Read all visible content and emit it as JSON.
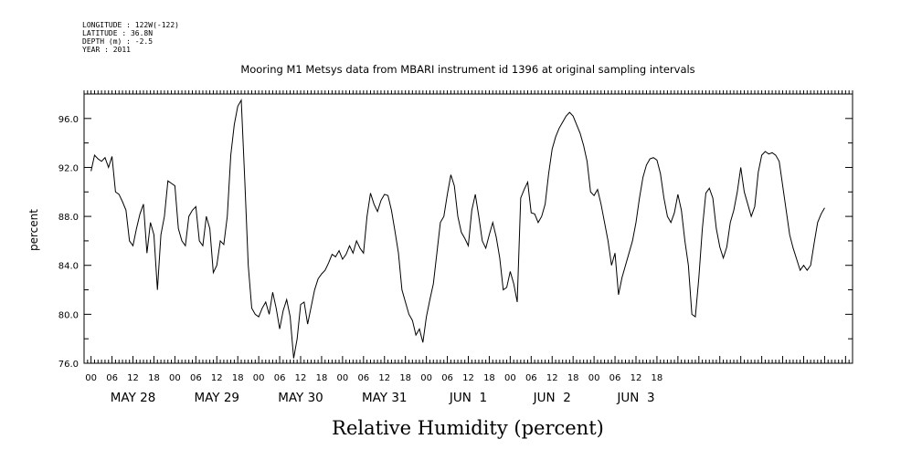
{
  "meta": {
    "longitude": "LONGITUDE : 122W(-122)",
    "latitude": "LATITUDE : 36.8N",
    "depth": "DEPTH (m) : -2.5",
    "year": "YEAR : 2011"
  },
  "chart_data": {
    "type": "line",
    "title": "Mooring M1 Metsys data from MBARI instrument id 1396 at original sampling intervals",
    "footer_title": "Relative Humidity (percent)",
    "ylabel": "percent",
    "xlabel": "",
    "ylim": [
      76.0,
      98.0
    ],
    "y_ticks": [
      "76.0",
      "80.0",
      "84.0",
      "88.0",
      "92.0",
      "96.0"
    ],
    "x_hour_labels": [
      "00",
      "06",
      "12",
      "18",
      "00",
      "06",
      "12",
      "18",
      "00",
      "06",
      "12",
      "18",
      "00",
      "06",
      "12",
      "18",
      "00",
      "06",
      "12",
      "18",
      "00",
      "06",
      "12",
      "18",
      "00",
      "06",
      "12",
      "18"
    ],
    "x_day_labels": [
      "MAY 28",
      "MAY 29",
      "MAY 30",
      "MAY 31",
      "JUN  1",
      "JUN  2",
      "JUN  3"
    ],
    "grid": false,
    "series": [
      {
        "points": [
          [
            0.0,
            91.7
          ],
          [
            1,
            93.0
          ],
          [
            2,
            92.7
          ],
          [
            3,
            92.5
          ],
          [
            4,
            92.8
          ],
          [
            5,
            92.0
          ],
          [
            6,
            92.9
          ],
          [
            7,
            90.0
          ],
          [
            8,
            89.8
          ],
          [
            9,
            89.2
          ],
          [
            10,
            88.5
          ],
          [
            11,
            86.0
          ],
          [
            12,
            85.6
          ],
          [
            13,
            87.0
          ],
          [
            14,
            88.2
          ],
          [
            15,
            89.0
          ],
          [
            16,
            85.0
          ],
          [
            17,
            87.5
          ],
          [
            18,
            86.5
          ],
          [
            19,
            82.0
          ],
          [
            20,
            86.5
          ],
          [
            21,
            88.0
          ],
          [
            22,
            90.9
          ],
          [
            23,
            90.7
          ],
          [
            24,
            90.5
          ],
          [
            25,
            87.0
          ],
          [
            26,
            86.0
          ],
          [
            27,
            85.6
          ],
          [
            28,
            88.0
          ],
          [
            29,
            88.5
          ],
          [
            30,
            88.8
          ],
          [
            31,
            86.0
          ],
          [
            32,
            85.6
          ],
          [
            33,
            88.0
          ],
          [
            34,
            87.0
          ],
          [
            35,
            83.4
          ],
          [
            36,
            84.0
          ],
          [
            37,
            86.0
          ],
          [
            38,
            85.7
          ],
          [
            39,
            88.0
          ],
          [
            40,
            93.0
          ],
          [
            41,
            95.5
          ],
          [
            42,
            97.0
          ],
          [
            43,
            97.5
          ],
          [
            44,
            91.0
          ],
          [
            45,
            84.0
          ],
          [
            46,
            80.5
          ],
          [
            47,
            80.0
          ],
          [
            48,
            79.8
          ],
          [
            49,
            80.5
          ],
          [
            50,
            81.0
          ],
          [
            51,
            80.0
          ],
          [
            52,
            81.8
          ],
          [
            53,
            80.5
          ],
          [
            54,
            78.8
          ],
          [
            55,
            80.3
          ],
          [
            56,
            81.2
          ],
          [
            57,
            79.8
          ],
          [
            58,
            76.4
          ],
          [
            59,
            78.0
          ],
          [
            60,
            80.8
          ],
          [
            61,
            81.0
          ],
          [
            62,
            79.2
          ],
          [
            63,
            80.6
          ],
          [
            64,
            82.0
          ],
          [
            65,
            82.9
          ],
          [
            66,
            83.3
          ],
          [
            67,
            83.6
          ],
          [
            68,
            84.2
          ],
          [
            69,
            84.9
          ],
          [
            70,
            84.7
          ],
          [
            71,
            85.2
          ],
          [
            72,
            84.5
          ],
          [
            73,
            84.9
          ],
          [
            74,
            85.6
          ],
          [
            75,
            85.0
          ],
          [
            76,
            86.0
          ],
          [
            77,
            85.4
          ],
          [
            78,
            85.0
          ],
          [
            79,
            88.0
          ],
          [
            80,
            89.9
          ],
          [
            81,
            89.0
          ],
          [
            82,
            88.4
          ],
          [
            83,
            89.3
          ],
          [
            84,
            89.8
          ],
          [
            85,
            89.7
          ],
          [
            86,
            88.5
          ],
          [
            87,
            86.8
          ],
          [
            88,
            85.0
          ],
          [
            89,
            82.0
          ],
          [
            90,
            81.0
          ],
          [
            91,
            80.0
          ],
          [
            92,
            79.5
          ],
          [
            93,
            78.3
          ],
          [
            94,
            78.8
          ],
          [
            95,
            77.7
          ],
          [
            96,
            79.8
          ],
          [
            97,
            81.2
          ],
          [
            98,
            82.5
          ],
          [
            99,
            85.0
          ],
          [
            100,
            87.5
          ],
          [
            101,
            88.0
          ],
          [
            102,
            89.8
          ],
          [
            103,
            91.4
          ],
          [
            104,
            90.5
          ],
          [
            105,
            88.0
          ],
          [
            106,
            86.7
          ],
          [
            107,
            86.2
          ],
          [
            108,
            85.6
          ],
          [
            109,
            88.5
          ],
          [
            110,
            89.8
          ],
          [
            111,
            88.0
          ],
          [
            112,
            86.0
          ],
          [
            113,
            85.4
          ],
          [
            114,
            86.5
          ],
          [
            115,
            87.5
          ],
          [
            116,
            86.3
          ],
          [
            117,
            84.6
          ],
          [
            118,
            82.0
          ],
          [
            119,
            82.2
          ],
          [
            120,
            83.5
          ],
          [
            121,
            82.5
          ],
          [
            122,
            81.0
          ],
          [
            123,
            89.5
          ],
          [
            124,
            90.2
          ],
          [
            125,
            90.8
          ],
          [
            126,
            88.3
          ],
          [
            127,
            88.2
          ],
          [
            128,
            87.5
          ],
          [
            129,
            88.0
          ],
          [
            130,
            89.0
          ],
          [
            131,
            91.5
          ],
          [
            132,
            93.5
          ],
          [
            133,
            94.5
          ],
          [
            134,
            95.2
          ],
          [
            135,
            95.7
          ],
          [
            136,
            96.2
          ],
          [
            137,
            96.5
          ],
          [
            138,
            96.2
          ],
          [
            139,
            95.5
          ],
          [
            140,
            94.8
          ],
          [
            141,
            93.8
          ],
          [
            142,
            92.5
          ],
          [
            143,
            90.0
          ],
          [
            144,
            89.7
          ],
          [
            145,
            90.2
          ],
          [
            146,
            89.0
          ],
          [
            147,
            87.5
          ],
          [
            148,
            86.0
          ],
          [
            149,
            84.0
          ],
          [
            150,
            85.0
          ],
          [
            151,
            81.6
          ],
          [
            152,
            83.0
          ],
          [
            153,
            84.0
          ],
          [
            154,
            85.0
          ],
          [
            155,
            86.0
          ],
          [
            156,
            87.5
          ],
          [
            157,
            89.5
          ],
          [
            158,
            91.2
          ],
          [
            159,
            92.2
          ],
          [
            160,
            92.7
          ],
          [
            161,
            92.8
          ],
          [
            162,
            92.6
          ],
          [
            163,
            91.5
          ],
          [
            164,
            89.5
          ],
          [
            165,
            88.0
          ],
          [
            166,
            87.5
          ],
          [
            167,
            88.3
          ],
          [
            168,
            89.8
          ],
          [
            169,
            88.5
          ],
          [
            170,
            86.0
          ],
          [
            171,
            84.0
          ],
          [
            172,
            80.0
          ],
          [
            173,
            79.8
          ],
          [
            174,
            83.0
          ],
          [
            175,
            87.0
          ],
          [
            176,
            89.9
          ],
          [
            177,
            90.3
          ],
          [
            178,
            89.5
          ],
          [
            179,
            87.0
          ],
          [
            180,
            85.5
          ],
          [
            181,
            84.6
          ],
          [
            182,
            85.5
          ],
          [
            183,
            87.5
          ],
          [
            184,
            88.5
          ],
          [
            185,
            90.0
          ],
          [
            186,
            92.0
          ],
          [
            187,
            90.0
          ],
          [
            188,
            89.0
          ],
          [
            189,
            88.0
          ],
          [
            190,
            88.8
          ],
          [
            191,
            91.6
          ],
          [
            192,
            93.0
          ],
          [
            193,
            93.3
          ],
          [
            194,
            93.1
          ],
          [
            195,
            93.2
          ],
          [
            196,
            93.0
          ],
          [
            197,
            92.5
          ],
          [
            198,
            90.5
          ],
          [
            199,
            88.5
          ],
          [
            200,
            86.5
          ],
          [
            201,
            85.4
          ],
          [
            202,
            84.5
          ],
          [
            203,
            83.6
          ],
          [
            204,
            84.0
          ],
          [
            205,
            83.6
          ],
          [
            206,
            84.0
          ],
          [
            207,
            85.8
          ],
          [
            208,
            87.5
          ],
          [
            209,
            88.2
          ],
          [
            210,
            88.7
          ]
        ]
      }
    ],
    "x_range_hours": [
      -2,
      218
    ]
  }
}
